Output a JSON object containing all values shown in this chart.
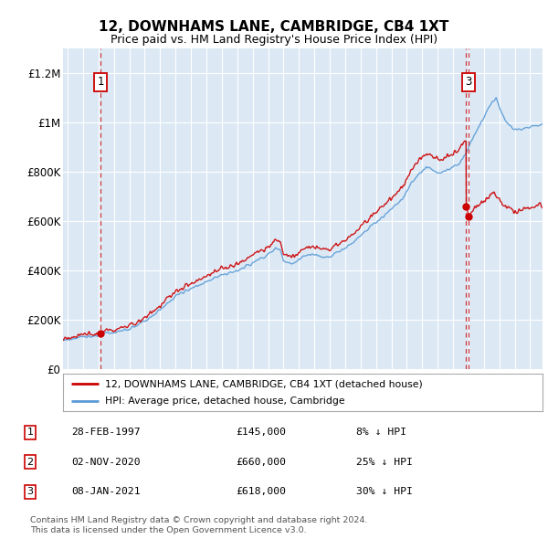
{
  "title": "12, DOWNHAMS LANE, CAMBRIDGE, CB4 1XT",
  "subtitle": "Price paid vs. HM Land Registry's House Price Index (HPI)",
  "background_color": "#dce9f5",
  "fig_bg_color": "#ffffff",
  "ylim": [
    0,
    1300000
  ],
  "xlim_start": 1994.7,
  "xlim_end": 2025.8,
  "yticks": [
    0,
    200000,
    400000,
    600000,
    800000,
    1000000,
    1200000
  ],
  "ytick_labels": [
    "£0",
    "£200K",
    "£400K",
    "£600K",
    "£800K",
    "£1M",
    "£1.2M"
  ],
  "xticks": [
    1995,
    1996,
    1997,
    1998,
    1999,
    2000,
    2001,
    2002,
    2003,
    2004,
    2005,
    2006,
    2007,
    2008,
    2009,
    2010,
    2011,
    2012,
    2013,
    2014,
    2015,
    2016,
    2017,
    2018,
    2019,
    2020,
    2021,
    2022,
    2023,
    2024,
    2025
  ],
  "transactions": [
    {
      "label": "1",
      "date": "28-FEB-1997",
      "price": 145000,
      "year": 1997.15,
      "hpi_pct": "8% ↓ HPI",
      "show_box": true
    },
    {
      "label": "2",
      "date": "02-NOV-2020",
      "price": 660000,
      "year": 2020.84,
      "hpi_pct": "25% ↓ HPI",
      "show_box": false
    },
    {
      "label": "3",
      "date": "08-JAN-2021",
      "price": 618000,
      "year": 2021.02,
      "hpi_pct": "30% ↓ HPI",
      "show_box": true
    }
  ],
  "legend_red": "12, DOWNHAMS LANE, CAMBRIDGE, CB4 1XT (detached house)",
  "legend_blue": "HPI: Average price, detached house, Cambridge",
  "footer1": "Contains HM Land Registry data © Crown copyright and database right 2024.",
  "footer2": "This data is licensed under the Open Government Licence v3.0.",
  "red_color": "#cc0000",
  "blue_color": "#5b9bd5",
  "grid_color": "#ffffff",
  "dashed_color": "#cc0000",
  "title_fontsize": 11,
  "subtitle_fontsize": 9
}
